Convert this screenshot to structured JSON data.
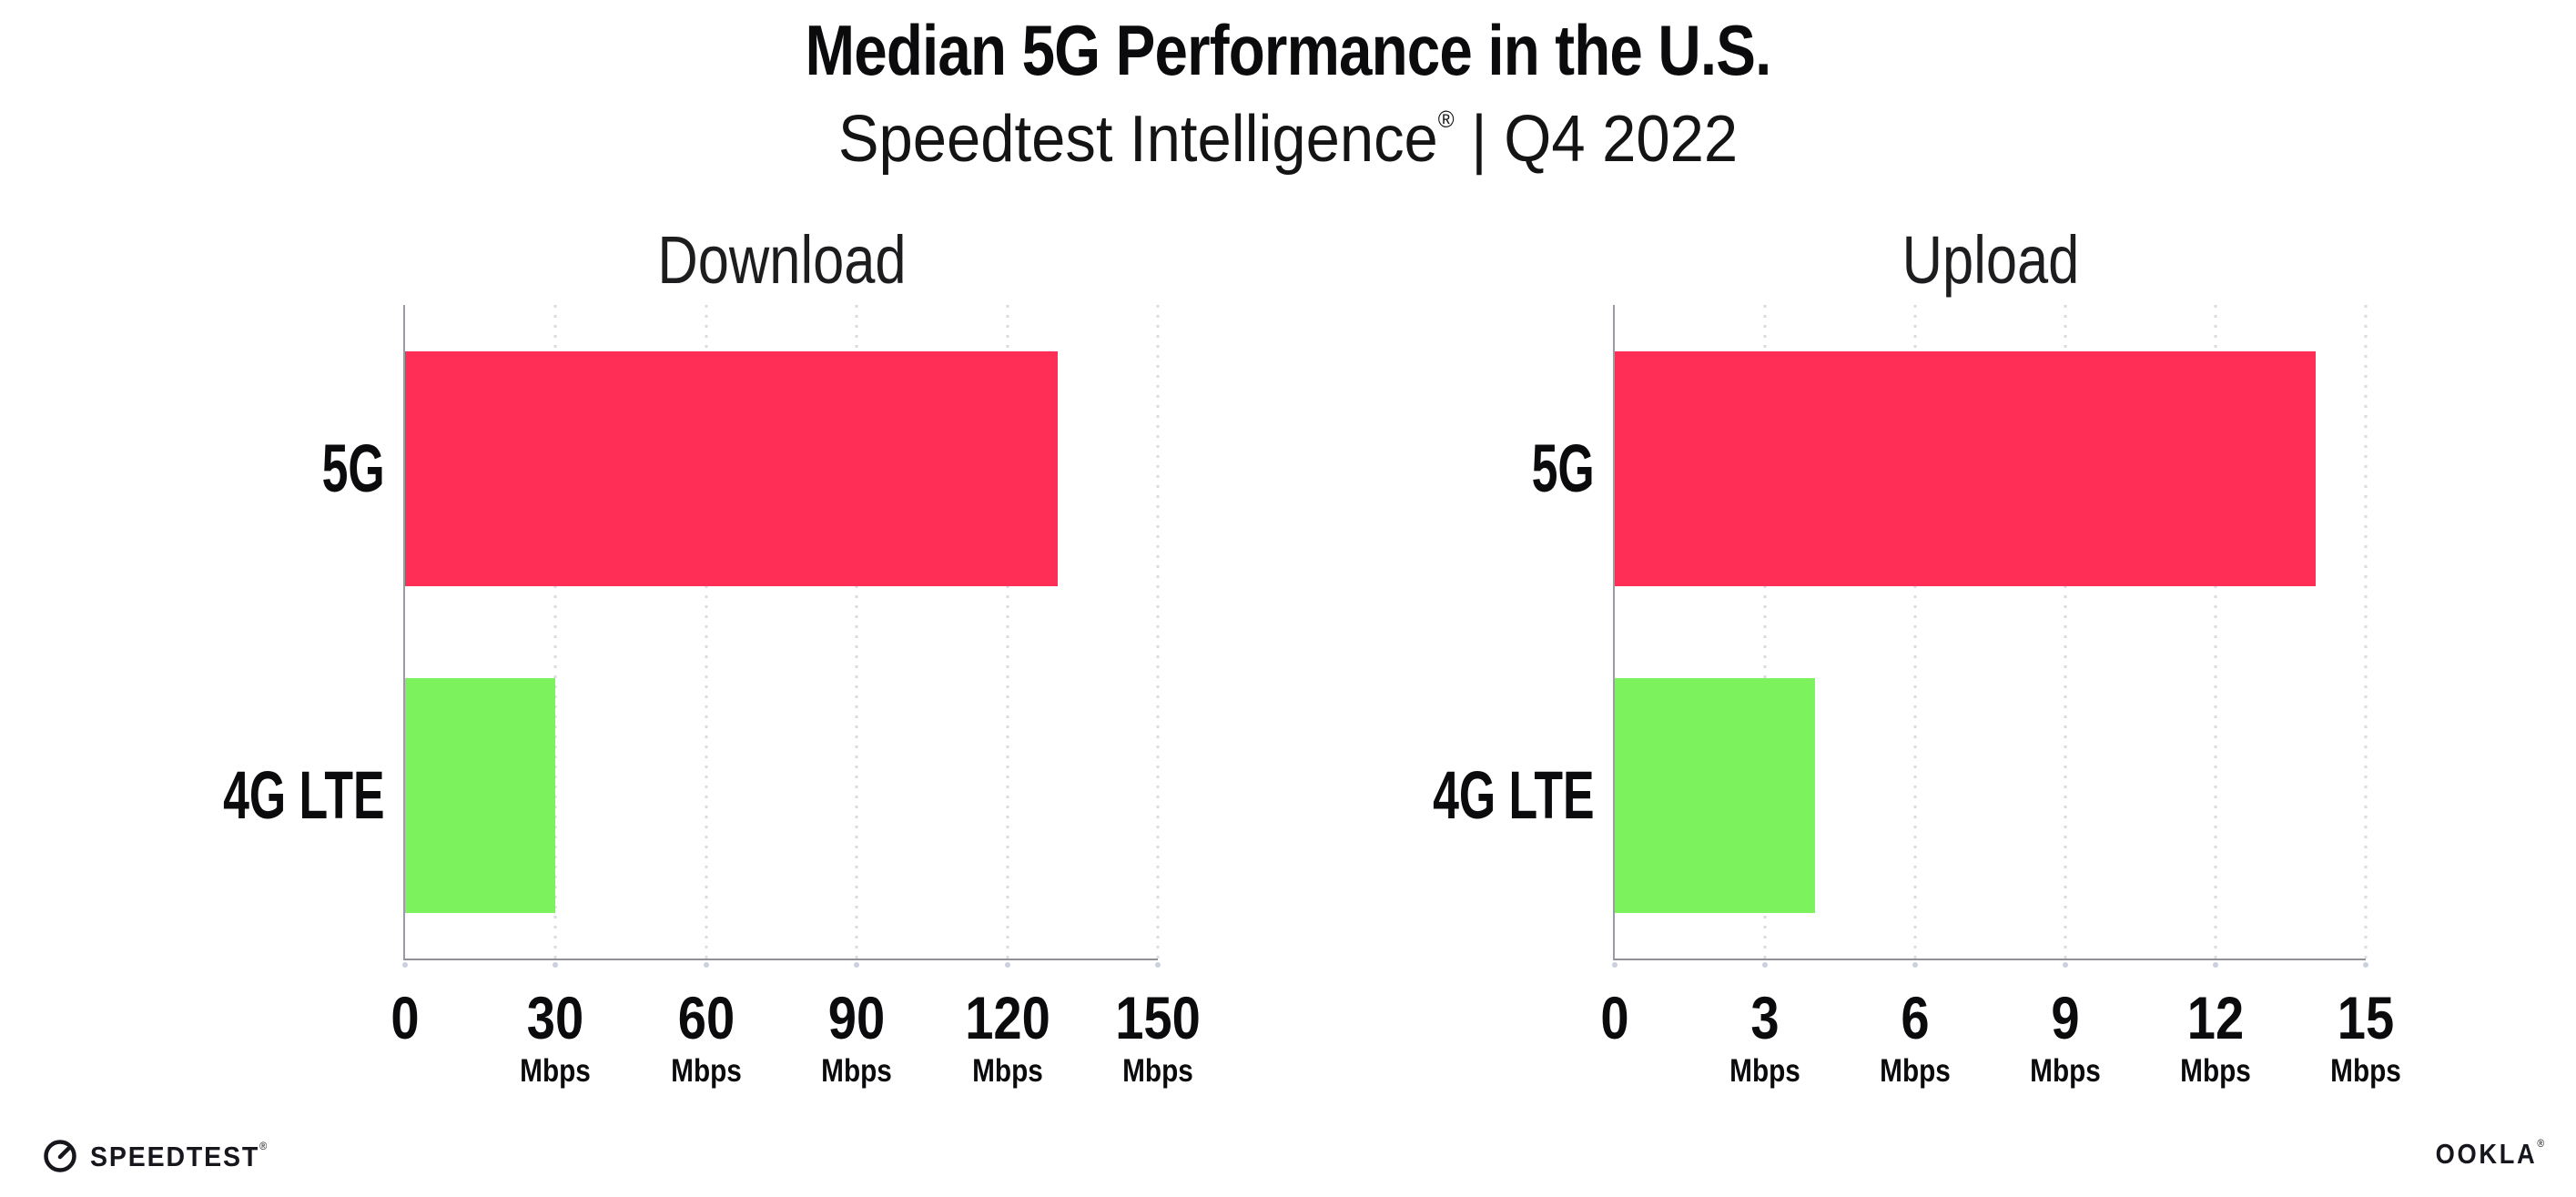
{
  "header": {
    "title": "Median 5G Performance in the U.S.",
    "subtitle_product": "Speedtest Intelligence",
    "subtitle_reg": "®",
    "subtitle_rest": " | Q4 2022"
  },
  "chart_data": [
    {
      "type": "bar",
      "orientation": "horizontal",
      "title": "Download",
      "categories": [
        "5G",
        "4G LTE"
      ],
      "values": [
        130,
        30
      ],
      "unit": "Mbps",
      "xlim": [
        0,
        150
      ],
      "xticks": [
        0,
        30,
        60,
        90,
        120,
        150
      ],
      "bar_colors": [
        "#FF2E56",
        "#7CF35C"
      ],
      "grid": "vertical-dotted",
      "legend": "none"
    },
    {
      "type": "bar",
      "orientation": "horizontal",
      "title": "Upload",
      "categories": [
        "5G",
        "4G LTE"
      ],
      "values": [
        14,
        4
      ],
      "unit": "Mbps",
      "xlim": [
        0,
        15
      ],
      "xticks": [
        0,
        3,
        6,
        9,
        12,
        15
      ],
      "bar_colors": [
        "#FF2E56",
        "#7CF35C"
      ],
      "grid": "vertical-dotted",
      "legend": "none"
    }
  ],
  "colors": {
    "bar_5g": "#FF2E56",
    "bar_4g_lte": "#7CF35C",
    "axis": "#94969C",
    "gridline": "#DADBE4",
    "text": "#0B0B0D"
  },
  "footer": {
    "speedtest_label": "SPEEDTEST",
    "speedtest_reg": "®",
    "ookla_label": "OOKLA",
    "ookla_reg": "®"
  }
}
